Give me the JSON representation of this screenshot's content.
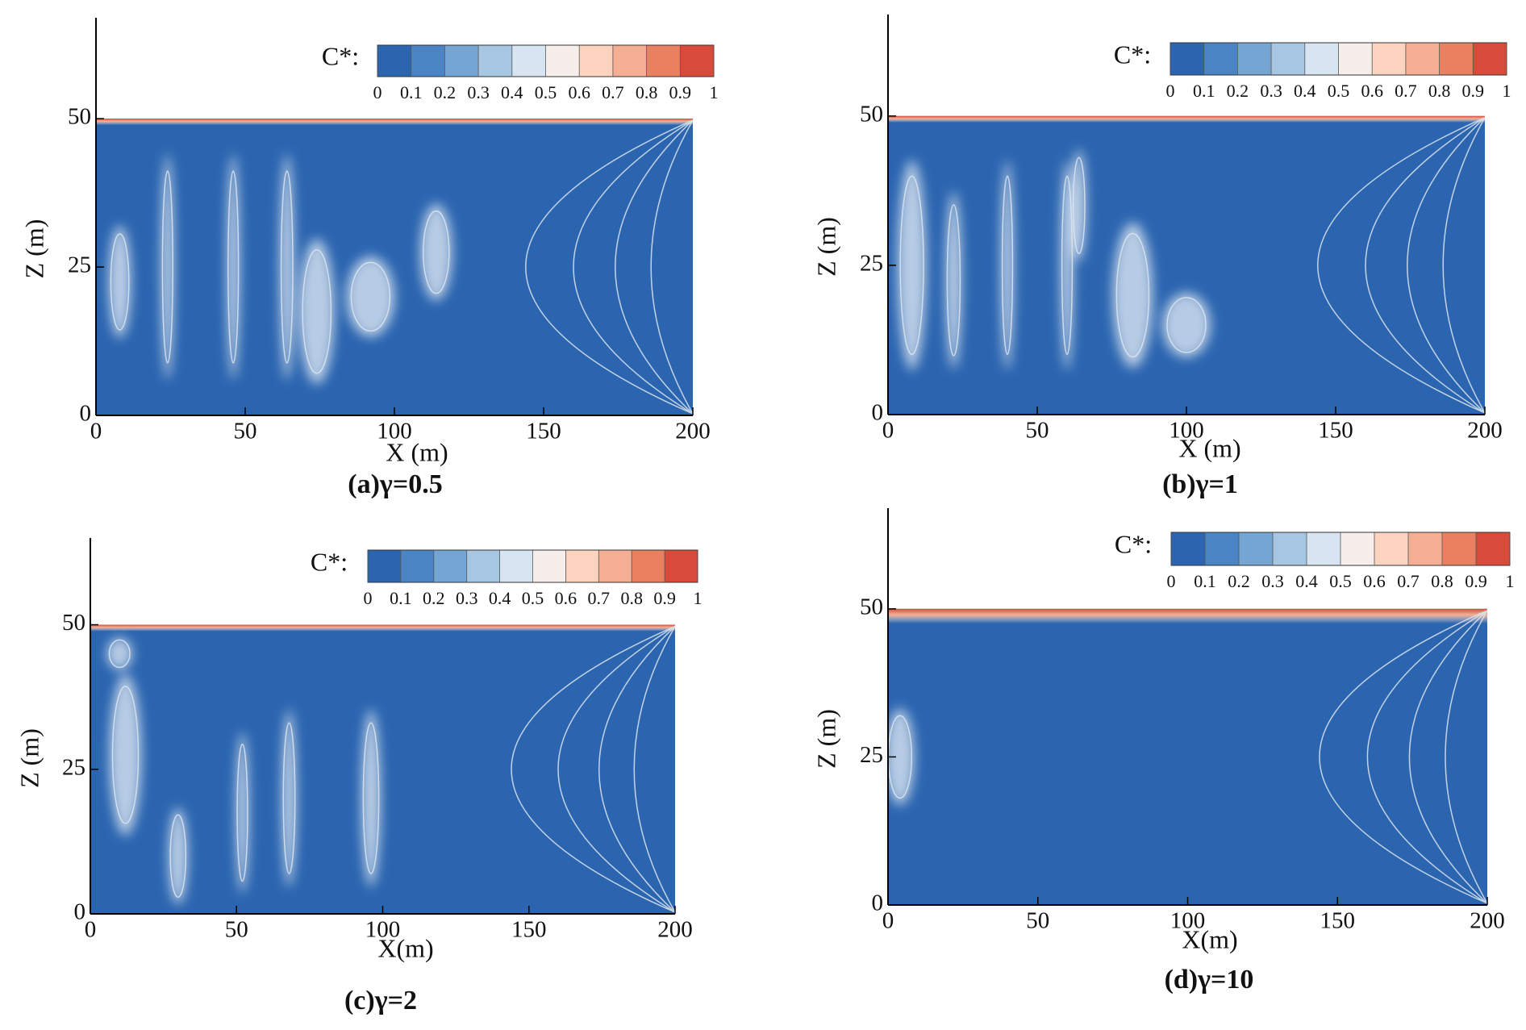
{
  "chart_data": [
    {
      "type": "contour",
      "caption": "(a)γ=0.5",
      "xlabel": "X (m)",
      "ylabel": "Z (m)",
      "xlim": [
        0,
        200
      ],
      "ylim": [
        0,
        67
      ],
      "xticks": [
        0,
        50,
        100,
        150,
        200
      ],
      "yticks": [
        0,
        25,
        50
      ],
      "domain_z": [
        0,
        50
      ],
      "colorbar": {
        "title": "C*:",
        "lim": [
          0,
          1
        ],
        "ticks": [
          0,
          0.1,
          0.2,
          0.3,
          0.4,
          0.5,
          0.6,
          0.7,
          0.8,
          0.9,
          1
        ],
        "colors": [
          "#2b65b0",
          "#4a84c4",
          "#75a5d3",
          "#a6c6e2",
          "#d6e5f1",
          "#f6eeea",
          "#fbd3bf",
          "#f4ae93",
          "#e9805f",
          "#d84b3b"
        ]
      }
    },
    {
      "type": "contour",
      "caption": "(b)γ=1",
      "xlabel": "X (m)",
      "ylabel": "Z (m)",
      "xlim": [
        0,
        200
      ],
      "ylim": [
        0,
        67
      ],
      "xticks": [
        0,
        50,
        100,
        150,
        200
      ],
      "yticks": [
        0,
        25,
        50
      ],
      "domain_z": [
        0,
        50
      ],
      "colorbar": {
        "title": "C*:",
        "lim": [
          0,
          1
        ],
        "ticks": [
          0,
          0.1,
          0.2,
          0.3,
          0.4,
          0.5,
          0.6,
          0.7,
          0.8,
          0.9,
          1
        ],
        "colors": [
          "#2b65b0",
          "#4a84c4",
          "#75a5d3",
          "#a6c6e2",
          "#d6e5f1",
          "#f6eeea",
          "#fbd3bf",
          "#f4ae93",
          "#e9805f",
          "#d84b3b"
        ]
      }
    },
    {
      "type": "contour",
      "caption": "(c)γ=2",
      "xlabel": "X(m)",
      "ylabel": "Z (m)",
      "xlim": [
        0,
        200
      ],
      "ylim": [
        0,
        65
      ],
      "xticks": [
        0,
        50,
        100,
        150,
        200
      ],
      "yticks": [
        0,
        25,
        50
      ],
      "domain_z": [
        0,
        50
      ],
      "colorbar": {
        "title": "C*:",
        "lim": [
          0,
          1
        ],
        "ticks": [
          0,
          0.1,
          0.2,
          0.3,
          0.4,
          0.5,
          0.6,
          0.7,
          0.8,
          0.9,
          1
        ],
        "colors": [
          "#2b65b0",
          "#4a84c4",
          "#75a5d3",
          "#a6c6e2",
          "#d6e5f1",
          "#f6eeea",
          "#fbd3bf",
          "#f4ae93",
          "#e9805f",
          "#d84b3b"
        ]
      }
    },
    {
      "type": "contour",
      "caption": "(d)γ=10",
      "xlabel": "X(m)",
      "ylabel": "Z (m)",
      "xlim": [
        0,
        200
      ],
      "ylim": [
        0,
        67
      ],
      "xticks": [
        0,
        50,
        100,
        150,
        200
      ],
      "yticks": [
        0,
        25,
        50
      ],
      "domain_z": [
        0,
        50
      ],
      "colorbar": {
        "title": "C*:",
        "lim": [
          0,
          1
        ],
        "ticks": [
          0,
          0.1,
          0.2,
          0.3,
          0.4,
          0.5,
          0.6,
          0.7,
          0.8,
          0.9,
          1
        ],
        "colors": [
          "#2b65b0",
          "#4a84c4",
          "#75a5d3",
          "#a6c6e2",
          "#d6e5f1",
          "#f6eeea",
          "#fbd3bf",
          "#f4ae93",
          "#e9805f",
          "#d84b3b"
        ]
      }
    }
  ]
}
